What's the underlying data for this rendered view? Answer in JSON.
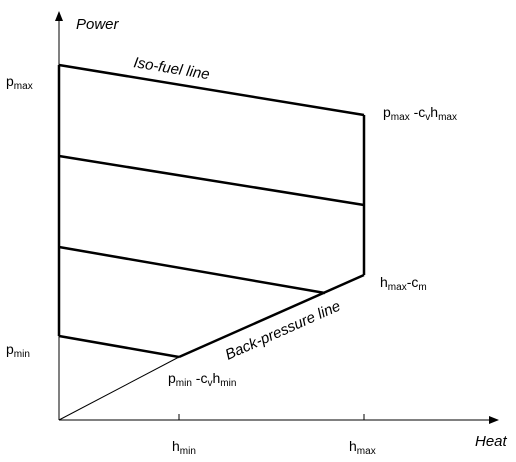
{
  "axes": {
    "y_label": "Power",
    "x_label": "Heat"
  },
  "lines": {
    "iso_fuel_label": "Iso-fuel line",
    "back_pressure_label": "Back-pressure line"
  },
  "labels": {
    "p_max": {
      "base": "p",
      "sub": "max"
    },
    "p_min": {
      "base": "p",
      "sub": "min"
    },
    "p_max_minus": {
      "p": "p",
      "p_sub": "max",
      "mid": " -c",
      "c_sub": "v",
      "h": "h",
      "h_sub": "max"
    },
    "p_min_minus": {
      "p": "p",
      "p_sub": "min",
      "mid": " -c",
      "c_sub": "v",
      "h": "h",
      "h_sub": "min"
    },
    "h_max_minus": {
      "h": "h",
      "h_sub": "max",
      "mid": "-c",
      "c_sub": "m"
    },
    "h_min": {
      "base": "h",
      "sub": "min"
    },
    "h_max": {
      "base": "h",
      "sub": "max"
    }
  },
  "colors": {
    "stroke": "#000000",
    "background": "#ffffff"
  }
}
